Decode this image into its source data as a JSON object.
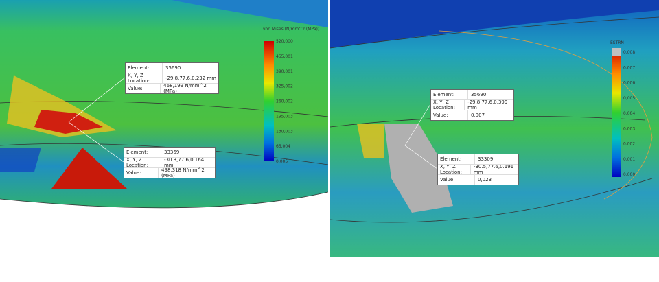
{
  "panels": [
    {
      "legend": {
        "title": "von Mises (N/mm^2 (MPa))",
        "labels": [
          "520,000",
          "455,001",
          "390,001",
          "325,002",
          "260,002",
          "195,003",
          "130,003",
          "65,004",
          "0,005"
        ]
      },
      "probes": [
        {
          "rows": [
            [
              "Element:",
              "35690"
            ],
            [
              "X, Y, Z Location:",
              "-29.8,77.6,0.232 mm"
            ],
            [
              "Value:",
              "468,199 N/mm^2 (MPa)"
            ]
          ]
        },
        {
          "rows": [
            [
              "Element:",
              "33369"
            ],
            [
              "X, Y, Z Location:",
              "-30.3,77.6,0.164 mm"
            ],
            [
              "Value:",
              "498,318 N/mm^2 (MPa)"
            ]
          ]
        }
      ]
    },
    {
      "legend": {
        "title": "ESTRN",
        "labels": [
          "0,008",
          "0,007",
          "0,006",
          "0,005",
          "0,004",
          "0,003",
          "0,002",
          "0,001",
          "0,000"
        ]
      },
      "probes": [
        {
          "rows": [
            [
              "Element:",
              "35690"
            ],
            [
              "X, Y, Z Location:",
              "-29.8,77.6,0.399 mm"
            ],
            [
              "Value:",
              "0,007"
            ]
          ]
        },
        {
          "rows": [
            [
              "Element:",
              "33309"
            ],
            [
              "X, Y, Z Location:",
              "-30.5,77.6,0.191 mm"
            ],
            [
              "Value:",
              "0,023"
            ]
          ]
        }
      ]
    }
  ]
}
